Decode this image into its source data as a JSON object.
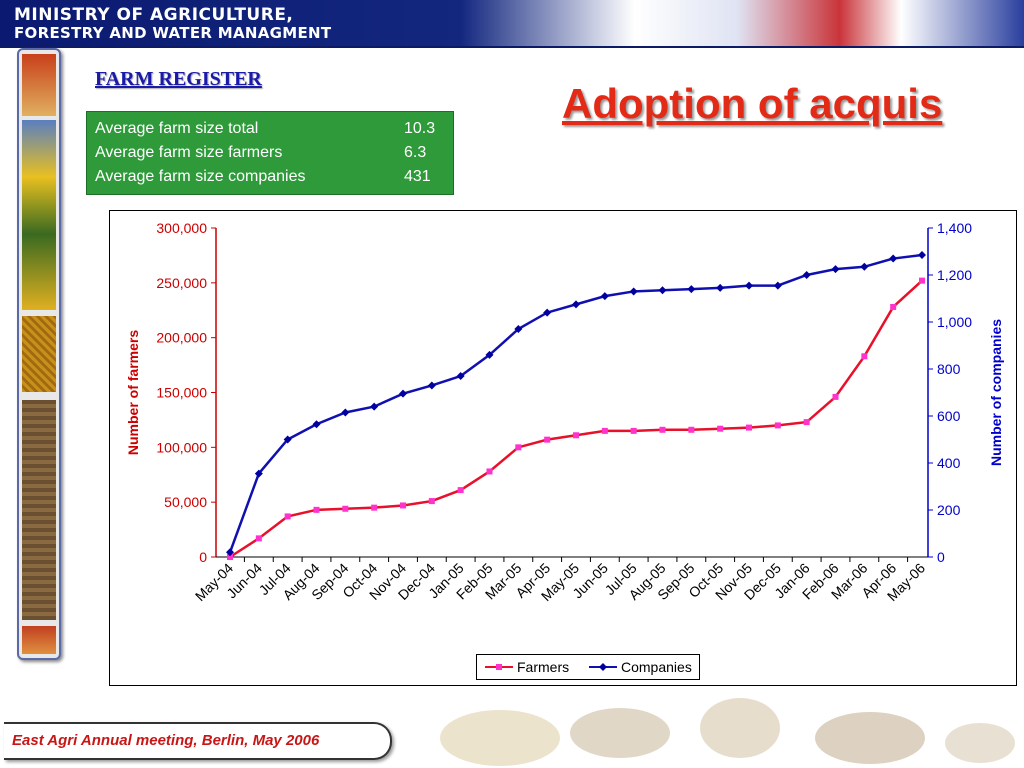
{
  "header": {
    "line1": "MINISTRY OF AGRICULTURE,",
    "line2": "FORESTRY AND WATER MANAGMENT"
  },
  "farm_register": {
    "title": "FARM REGISTER",
    "rows": [
      {
        "label": "Average farm size total",
        "value": "10.3"
      },
      {
        "label": "Average farm size farmers",
        "value": "6.3"
      },
      {
        "label": "Average farm size companies",
        "value": "431"
      }
    ]
  },
  "main_title": "Adoption of acquis",
  "footer": {
    "text": "East Agri Annual meeting, Berlin, May 2006"
  },
  "chart_data": {
    "type": "line",
    "categories": [
      "May-04",
      "Jun-04",
      "Jul-04",
      "Aug-04",
      "Sep-04",
      "Oct-04",
      "Nov-04",
      "Dec-04",
      "Jan-05",
      "Feb-05",
      "Mar-05",
      "Apr-05",
      "May-05",
      "Jun-05",
      "Jul-05",
      "Aug-05",
      "Sep-05",
      "Oct-05",
      "Nov-05",
      "Dec-05",
      "Jan-06",
      "Feb-06",
      "Mar-06",
      "Apr-06",
      "May-06"
    ],
    "series": [
      {
        "name": "Farmers",
        "axis": "left",
        "color": "#e8102a",
        "marker_color": "#ff33cc",
        "values": [
          0,
          17000,
          37000,
          43000,
          44000,
          45000,
          47000,
          51000,
          61000,
          78000,
          100000,
          107000,
          111000,
          115000,
          115000,
          116000,
          116000,
          117000,
          118000,
          120000,
          123000,
          146000,
          183000,
          228000,
          252000
        ]
      },
      {
        "name": "Companies",
        "axis": "right",
        "color": "#1010b0",
        "marker_color": "#0000a0",
        "values": [
          20,
          355,
          500,
          565,
          615,
          640,
          695,
          730,
          770,
          860,
          970,
          1040,
          1075,
          1110,
          1130,
          1135,
          1140,
          1145,
          1155,
          1155,
          1200,
          1225,
          1235,
          1270,
          1285
        ]
      }
    ],
    "ylabel": "Number of farmers",
    "y2label": "Number of companies",
    "ylim": [
      0,
      300000
    ],
    "y2lim": [
      0,
      1400
    ],
    "yticks": [
      "0",
      "50,000",
      "100,000",
      "150,000",
      "200,000",
      "250,000",
      "300,000"
    ],
    "y2ticks": [
      "0",
      "200",
      "400",
      "600",
      "800",
      "1,000",
      "1,200",
      "1,400"
    ],
    "left_axis_color": "#cc0000",
    "right_axis_color": "#0000cc",
    "legend_position": "bottom-center",
    "grid": false
  }
}
